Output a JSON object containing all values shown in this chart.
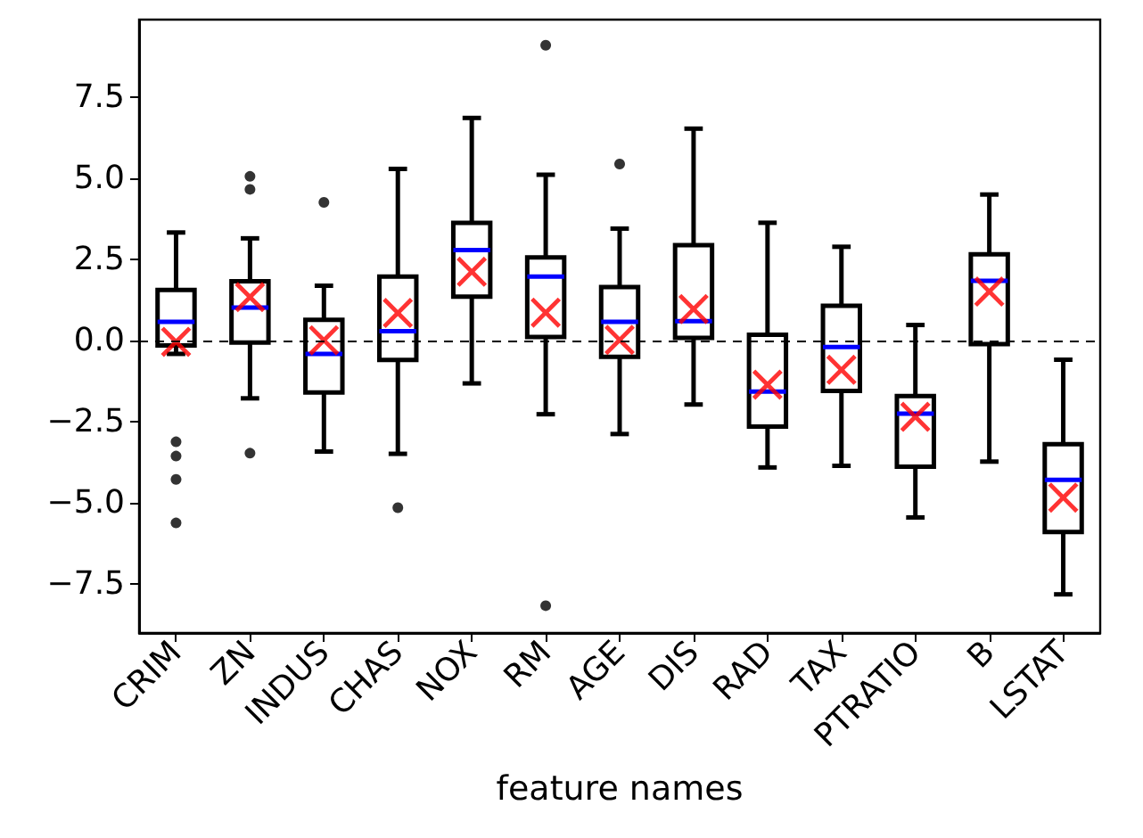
{
  "chart_data": {
    "type": "box",
    "xlabel": "feature names",
    "categories": [
      "CRIM",
      "ZN",
      "INDUS",
      "CHAS",
      "NOX",
      "RM",
      "AGE",
      "DIS",
      "RAD",
      "TAX",
      "PTRATIO",
      "B",
      "LSTAT"
    ],
    "series": [
      {
        "color": "#000000",
        "boxes": [
          {
            "low": -0.4,
            "q1": -0.14,
            "median": 0.59,
            "q3": 1.57,
            "high": 3.34,
            "mean": -0.03,
            "outliers": [
              -3.11,
              -3.55,
              -4.27,
              -5.61
            ]
          },
          {
            "low": -1.77,
            "q1": -0.05,
            "median": 1.03,
            "q3": 1.84,
            "high": 3.16,
            "mean": 1.35,
            "outliers": [
              5.07,
              4.67,
              -3.46
            ]
          },
          {
            "low": -3.41,
            "q1": -1.59,
            "median": -0.4,
            "q3": 0.65,
            "high": 1.7,
            "mean": 0.02,
            "outliers": [
              4.27
            ]
          },
          {
            "low": -3.48,
            "q1": -0.59,
            "median": 0.3,
            "q3": 1.98,
            "high": 5.3,
            "mean": 0.86,
            "outliers": [
              -5.14
            ]
          },
          {
            "low": -1.31,
            "q1": 1.36,
            "median": 2.8,
            "q3": 3.64,
            "high": 6.87,
            "mean": 2.13
          },
          {
            "low": -2.26,
            "q1": 0.12,
            "median": 1.98,
            "q3": 2.57,
            "high": 5.12,
            "mean": 0.87,
            "outliers": [
              9.11,
              -8.16
            ]
          },
          {
            "low": -2.87,
            "q1": -0.49,
            "median": 0.59,
            "q3": 1.66,
            "high": 3.46,
            "mean": 0.03,
            "outliers": [
              5.45
            ]
          },
          {
            "low": -1.96,
            "q1": 0.09,
            "median": 0.61,
            "q3": 2.95,
            "high": 6.54,
            "mean": 0.98
          },
          {
            "low": -3.9,
            "q1": -2.64,
            "median": -1.56,
            "q3": 0.19,
            "high": 3.64,
            "mean": -1.35
          },
          {
            "low": -3.85,
            "q1": -1.54,
            "median": -0.19,
            "q3": 1.08,
            "high": 2.9,
            "mean": -0.89
          },
          {
            "low": -5.44,
            "q1": -3.88,
            "median": -2.24,
            "q3": -1.7,
            "high": 0.49,
            "mean": -2.34
          },
          {
            "low": -3.72,
            "q1": -0.1,
            "median": 1.85,
            "q3": 2.67,
            "high": 4.51,
            "mean": 1.52
          },
          {
            "low": -7.81,
            "q1": -5.89,
            "median": -4.28,
            "q3": -3.18,
            "high": -0.58,
            "mean": -4.83
          }
        ]
      }
    ],
    "ylim": [
      -9.0,
      9.9
    ],
    "yticks": [
      {
        "value": -7.5,
        "label": "−7.5"
      },
      {
        "value": -5,
        "label": "−5.0"
      },
      {
        "value": -2.5,
        "label": "−2.5"
      },
      {
        "value": 0,
        "label": "0.0"
      },
      {
        "value": 2.5,
        "label": "2.5"
      },
      {
        "value": 5,
        "label": "5.0"
      },
      {
        "value": 7.5,
        "label": "7.5"
      }
    ],
    "ref_lines": [
      {
        "axis": "y",
        "value": 0,
        "color": "#000000",
        "line_style": "dashed"
      }
    ],
    "marker": "cross",
    "grid": false
  }
}
